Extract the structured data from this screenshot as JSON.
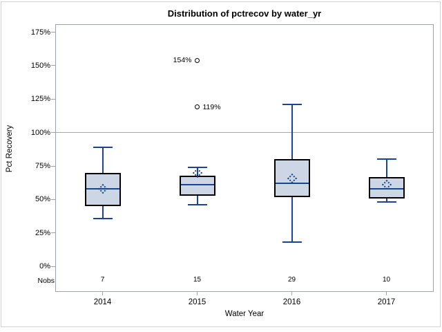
{
  "chart_data": {
    "type": "box",
    "title": "Distribution of pctrecov by water_yr",
    "xlabel": "Water Year",
    "ylabel": "Pct Recovery",
    "categories": [
      "2014",
      "2015",
      "2016",
      "2017"
    ],
    "nobs_label": "Nobs",
    "nobs": [
      "7",
      "15",
      "29",
      "10"
    ],
    "series": [
      {
        "category": "2014",
        "n": 7,
        "whisker_low": 36,
        "q1": 45,
        "median": 58,
        "q3": 70,
        "whisker_high": 89,
        "mean": 58,
        "outliers": []
      },
      {
        "category": "2015",
        "n": 15,
        "whisker_low": 46,
        "q1": 53,
        "median": 61,
        "q3": 68,
        "whisker_high": 74,
        "mean": 70,
        "outliers": [
          {
            "value": 154,
            "label": "154%",
            "label_side": "left"
          },
          {
            "value": 119,
            "label": "119%",
            "label_side": "right"
          }
        ]
      },
      {
        "category": "2016",
        "n": 29,
        "whisker_low": 18,
        "q1": 52,
        "median": 62,
        "q3": 80,
        "whisker_high": 121,
        "mean": 66,
        "outliers": []
      },
      {
        "category": "2017",
        "n": 10,
        "whisker_low": 48,
        "q1": 51,
        "median": 58,
        "q3": 67,
        "whisker_high": 80,
        "mean": 61,
        "outliers": []
      }
    ],
    "y_ticks": [
      {
        "value": 0,
        "label": "0%"
      },
      {
        "value": 25,
        "label": "25%"
      },
      {
        "value": 50,
        "label": "50%"
      },
      {
        "value": 75,
        "label": "75%"
      },
      {
        "value": 100,
        "label": "100%"
      },
      {
        "value": 125,
        "label": "125%"
      },
      {
        "value": 150,
        "label": "150%"
      },
      {
        "value": 175,
        "label": "175%"
      }
    ],
    "ylim": [
      -19,
      181
    ],
    "reference_line": 100,
    "grid": "off",
    "legend": "none",
    "colors": {
      "box_fill": "#cdd6e4",
      "box_border": "#000000",
      "line_blue": "#1a4394",
      "outlier": "#000000",
      "reference_line": "#a8a8a8",
      "plot_border": "#9ba1a8",
      "figure_border": "#cdd1d5",
      "text": "#000000"
    }
  }
}
